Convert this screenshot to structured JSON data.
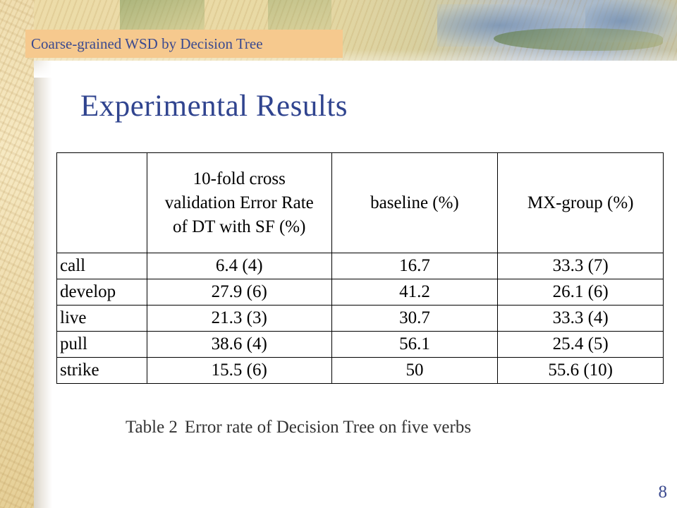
{
  "header": {
    "section_label": "Coarse-grained WSD by Decision Tree"
  },
  "title": "Experimental Results",
  "table": {
    "columns": [
      "",
      [
        "10-fold cross",
        "validation Error Rate",
        "of DT with SF (%)"
      ],
      "baseline (%)",
      "MX-group (%)"
    ],
    "rows": [
      {
        "verb": "call",
        "dt": "6.4 (4)",
        "baseline": "16.7",
        "mx": "33.3 (7)"
      },
      {
        "verb": "develop",
        "dt": "27.9 (6)",
        "baseline": "41.2",
        "mx": "26.1 (6)"
      },
      {
        "verb": "live",
        "dt": "21.3 (3)",
        "baseline": "30.7",
        "mx": "33.3 (4)"
      },
      {
        "verb": "pull",
        "dt": "38.6 (4)",
        "baseline": "56.1",
        "mx": "25.4 (5)"
      },
      {
        "verb": "strike",
        "dt": "15.5 (6)",
        "baseline": "50",
        "mx": "55.6 (10)"
      }
    ]
  },
  "caption": {
    "label": "Table 2",
    "text": "Error rate of Decision Tree on five verbs"
  },
  "page_number": "8",
  "colors": {
    "accent": "#30448f",
    "header_bg": "#f6c98e",
    "header_text": "#3b4a8f"
  }
}
